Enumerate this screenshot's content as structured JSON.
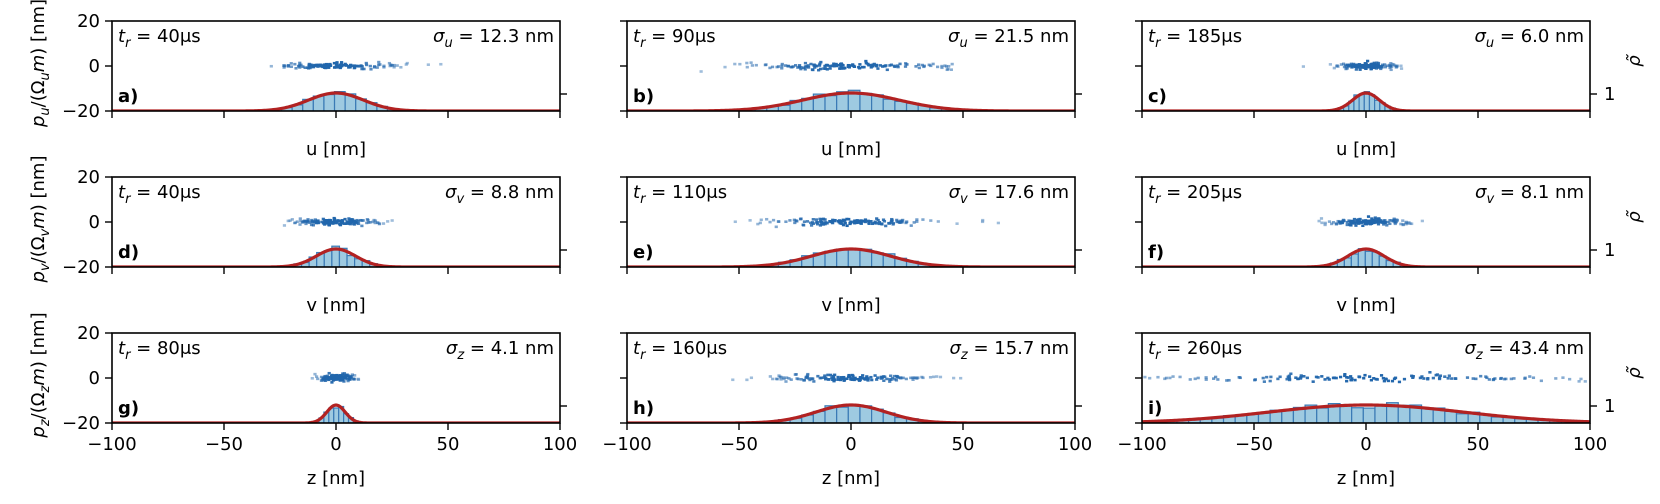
{
  "chart_data": {
    "type": "grid_of_phase_space_histograms",
    "x_ticks": [
      -100,
      -50,
      0,
      50,
      100
    ],
    "xlim": [
      -100,
      100
    ],
    "y_ticks": [
      20,
      0,
      -20
    ],
    "ylim": [
      -20,
      20
    ],
    "right_axis_label": "ρ̃",
    "right_tick_label": "1",
    "rows": [
      {
        "ylabel": "p_u/(Ω_u m) [nm]",
        "xlabel": "u [nm]",
        "show_x_ticklabels": false
      },
      {
        "ylabel": "p_v/(Ω_v m) [nm]",
        "xlabel": "v [nm]",
        "show_x_ticklabels": false
      },
      {
        "ylabel": "p_z/(Ω_z m) [nm]",
        "xlabel": "z [nm]",
        "show_x_ticklabels": true
      }
    ],
    "panels": [
      {
        "letter": "a)",
        "t_r": "t_r = 40μs",
        "sigma_sym": "u",
        "sigma_text": "σ_u = 12.3 nm",
        "sigma": 12.3,
        "row": 0,
        "col": 0
      },
      {
        "letter": "b)",
        "t_r": "t_r = 90μs",
        "sigma_sym": "u",
        "sigma_text": "σ_u = 21.5 nm",
        "sigma": 21.5,
        "row": 0,
        "col": 1
      },
      {
        "letter": "c)",
        "t_r": "t_r = 185μs",
        "sigma_sym": "u",
        "sigma_text": "σ_u = 6.0 nm",
        "sigma": 6.0,
        "row": 0,
        "col": 2
      },
      {
        "letter": "d)",
        "t_r": "t_r = 40μs",
        "sigma_sym": "v",
        "sigma_text": "σ_v = 8.8 nm",
        "sigma": 8.8,
        "row": 1,
        "col": 0
      },
      {
        "letter": "e)",
        "t_r": "t_r = 110μs",
        "sigma_sym": "v",
        "sigma_text": "σ_v = 17.6 nm",
        "sigma": 17.6,
        "row": 1,
        "col": 1
      },
      {
        "letter": "f)",
        "t_r": "t_r = 205μs",
        "sigma_sym": "v",
        "sigma_text": "σ_v = 8.1 nm",
        "sigma": 8.1,
        "row": 1,
        "col": 2
      },
      {
        "letter": "g)",
        "t_r": "t_r = 80μs",
        "sigma_sym": "z",
        "sigma_text": "σ_z = 4.1 nm",
        "sigma": 4.1,
        "row": 2,
        "col": 0
      },
      {
        "letter": "h)",
        "t_r": "t_r = 160μs",
        "sigma_sym": "z",
        "sigma_text": "σ_z = 15.7 nm",
        "sigma": 15.7,
        "row": 2,
        "col": 1
      },
      {
        "letter": "i)",
        "t_r": "t_r = 260μs",
        "sigma_sym": "z",
        "sigma_text": "σ_z = 43.4 nm",
        "sigma": 43.4,
        "row": 2,
        "col": 2
      }
    ]
  },
  "colors": {
    "bar_fill": "#9ecae1",
    "bar_edge": "#3a7ab5",
    "fit": "#b22222",
    "points": "#2166ac"
  }
}
